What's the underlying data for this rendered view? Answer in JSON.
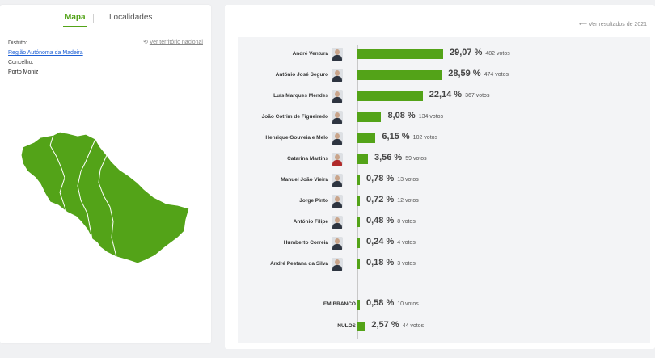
{
  "tabs": {
    "map": "Mapa",
    "localities": "Localidades"
  },
  "info": {
    "district_label": "Distrito:",
    "district_value": "Região Autónoma da Madeira",
    "county_label": "Concelho:",
    "county_value": "Porto Moniz",
    "national_link": "Ver território nacional"
  },
  "results_link": "Ver resultados de 2021",
  "colors": {
    "accent": "#53a318",
    "link": "#1c5fd4"
  },
  "chart_data": {
    "type": "bar",
    "orientation": "horizontal",
    "categories": [
      "André Ventura",
      "António José Seguro",
      "Luís Marques Mendes",
      "João Cotrim de Figueiredo",
      "Henrique Gouveia e Melo",
      "Catarina Martins",
      "Manuel João Vieira",
      "Jorge Pinto",
      "António Filipe",
      "Humberto Correia",
      "André Pestana da Silva",
      "EM BRANCO",
      "NULOS"
    ],
    "values": [
      29.07,
      28.59,
      22.14,
      8.08,
      6.15,
      3.56,
      0.78,
      0.72,
      0.48,
      0.24,
      0.18,
      0.58,
      2.57
    ],
    "rows": [
      {
        "name": "André Ventura",
        "pct": "29,07 %",
        "votes": "482 votos",
        "value": 29.07,
        "avatar": true,
        "red": false
      },
      {
        "name": "António José Seguro",
        "pct": "28,59 %",
        "votes": "474 votos",
        "value": 28.59,
        "avatar": true,
        "red": false
      },
      {
        "name": "Luís Marques Mendes",
        "pct": "22,14 %",
        "votes": "367 votos",
        "value": 22.14,
        "avatar": true,
        "red": false
      },
      {
        "name": "João Cotrim de Figueiredo",
        "pct": "8,08 %",
        "votes": "134 votos",
        "value": 8.08,
        "avatar": true,
        "red": false
      },
      {
        "name": "Henrique Gouveia e Melo",
        "pct": "6,15 %",
        "votes": "102 votos",
        "value": 6.15,
        "avatar": true,
        "red": false
      },
      {
        "name": "Catarina Martins",
        "pct": "3,56 %",
        "votes": "59 votos",
        "value": 3.56,
        "avatar": true,
        "red": true
      },
      {
        "name": "Manuel João Vieira",
        "pct": "0,78 %",
        "votes": "13 votos",
        "value": 0.78,
        "avatar": true,
        "red": false
      },
      {
        "name": "Jorge Pinto",
        "pct": "0,72 %",
        "votes": "12 votos",
        "value": 0.72,
        "avatar": true,
        "red": false
      },
      {
        "name": "António Filipe",
        "pct": "0,48 %",
        "votes": "8 votos",
        "value": 0.48,
        "avatar": true,
        "red": false
      },
      {
        "name": "Humberto Correia",
        "pct": "0,24 %",
        "votes": "4 votos",
        "value": 0.24,
        "avatar": true,
        "red": false
      },
      {
        "name": "André Pestana da Silva",
        "pct": "0,18 %",
        "votes": "3 votos",
        "value": 0.18,
        "avatar": true,
        "red": false
      },
      {
        "name": "EM BRANCO",
        "pct": "0,58 %",
        "votes": "10 votos",
        "value": 0.58,
        "avatar": false,
        "red": false
      },
      {
        "name": "NULOS",
        "pct": "2,57 %",
        "votes": "44 votos",
        "value": 2.57,
        "avatar": false,
        "red": false
      }
    ],
    "xlim": [
      0,
      29.07
    ]
  }
}
